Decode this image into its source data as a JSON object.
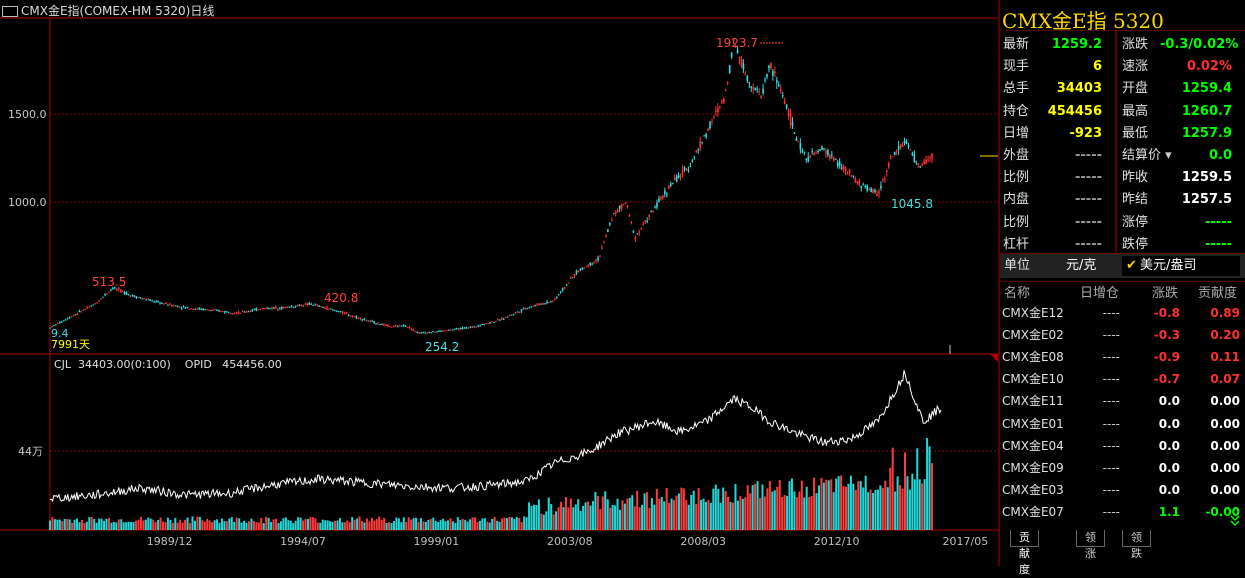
{
  "header": {
    "title": "CMX金E指(COMEX-HM 5320)日线"
  },
  "quote": {
    "instrument_title": "CMX金E指  5320",
    "rows_left": [
      {
        "label": "最新",
        "value": "1259.2",
        "color": "green"
      },
      {
        "label": "现手",
        "value": "6",
        "color": "yellow"
      },
      {
        "label": "总手",
        "value": "34403",
        "color": "yellow"
      },
      {
        "label": "持仓",
        "value": "454456",
        "color": "yellow"
      },
      {
        "label": "日增",
        "value": "-923",
        "color": "yellow"
      },
      {
        "label": "外盘",
        "value": "-----",
        "color": "gray"
      },
      {
        "label": "比例",
        "value": "-----",
        "color": "gray"
      },
      {
        "label": "内盘",
        "value": "-----",
        "color": "gray"
      },
      {
        "label": "比例",
        "value": "-----",
        "color": "gray"
      },
      {
        "label": "杠杆",
        "value": "-----",
        "color": "gray"
      }
    ],
    "rows_right": [
      {
        "label": "涨跌",
        "value": "-0.3/0.02%",
        "color": "green"
      },
      {
        "label": "速涨",
        "value": "0.02%",
        "color": "red"
      },
      {
        "label": "开盘",
        "value": "1259.4",
        "color": "green"
      },
      {
        "label": "最高",
        "value": "1260.7",
        "color": "green"
      },
      {
        "label": "最低",
        "value": "1257.9",
        "color": "green"
      },
      {
        "label": "结算价",
        "value": "0.0",
        "color": "green"
      },
      {
        "label": "昨收",
        "value": "1259.5",
        "color": "white"
      },
      {
        "label": "昨结",
        "value": "1257.5",
        "color": "white"
      },
      {
        "label": "涨停",
        "value": "-----",
        "color": "green"
      },
      {
        "label": "跌停",
        "value": "-----",
        "color": "green"
      }
    ],
    "unit_label": "单位",
    "unit_option_1": "元/克",
    "unit_option_2": "美元/盎司"
  },
  "components": {
    "headers": [
      "名称",
      "日增仓",
      "涨跌",
      "贡献度"
    ],
    "rows": [
      {
        "name": "CMX金E12",
        "oi_change": "----",
        "change": "-0.8",
        "contrib": "0.89",
        "color": "red"
      },
      {
        "name": "CMX金E02",
        "oi_change": "----",
        "change": "-0.3",
        "contrib": "0.20",
        "color": "red"
      },
      {
        "name": "CMX金E08",
        "oi_change": "----",
        "change": "-0.9",
        "contrib": "0.11",
        "color": "red"
      },
      {
        "name": "CMX金E10",
        "oi_change": "----",
        "change": "-0.7",
        "contrib": "0.07",
        "color": "red"
      },
      {
        "name": "CMX金E11",
        "oi_change": "----",
        "change": "0.0",
        "contrib": "0.00",
        "color": "white"
      },
      {
        "name": "CMX金E01",
        "oi_change": "----",
        "change": "0.0",
        "contrib": "0.00",
        "color": "white"
      },
      {
        "name": "CMX金E04",
        "oi_change": "----",
        "change": "0.0",
        "contrib": "0.00",
        "color": "white"
      },
      {
        "name": "CMX金E09",
        "oi_change": "----",
        "change": "0.0",
        "contrib": "0.00",
        "color": "white"
      },
      {
        "name": "CMX金E03",
        "oi_change": "----",
        "change": "0.0",
        "contrib": "0.00",
        "color": "white"
      },
      {
        "name": "CMX金E07",
        "oi_change": "----",
        "change": "1.1",
        "contrib": "-0.00",
        "color": "green"
      }
    ],
    "tabs": [
      "贡献度",
      "领涨",
      "领跌"
    ]
  },
  "chart_data": [
    {
      "type": "candlestick",
      "interval": "日线",
      "y_ticks": [
        "1500.0",
        "1000.0"
      ],
      "x_ticks": [
        "1989/12",
        "1994/07",
        "1999/01",
        "2003/08",
        "2008/03",
        "2012/10",
        "2017/05"
      ],
      "x_tick_pos": [
        0.13,
        0.275,
        0.42,
        0.565,
        0.71,
        0.855,
        0.995
      ],
      "path": [
        [
          0.0,
          286
        ],
        [
          0.02,
          340
        ],
        [
          0.05,
          420
        ],
        [
          0.07,
          513.5
        ],
        [
          0.09,
          470
        ],
        [
          0.12,
          430
        ],
        [
          0.15,
          400
        ],
        [
          0.18,
          385
        ],
        [
          0.21,
          370
        ],
        [
          0.235,
          395
        ],
        [
          0.26,
          400
        ],
        [
          0.29,
          420.8
        ],
        [
          0.32,
          380
        ],
        [
          0.35,
          330
        ],
        [
          0.38,
          290
        ],
        [
          0.395,
          300
        ],
        [
          0.41,
          254.2
        ],
        [
          0.44,
          270
        ],
        [
          0.47,
          290
        ],
        [
          0.5,
          330
        ],
        [
          0.53,
          400
        ],
        [
          0.56,
          440
        ],
        [
          0.585,
          600
        ],
        [
          0.61,
          680
        ],
        [
          0.625,
          920
        ],
        [
          0.64,
          1000
        ],
        [
          0.65,
          800
        ],
        [
          0.67,
          950
        ],
        [
          0.69,
          1100
        ],
        [
          0.71,
          1200
        ],
        [
          0.73,
          1400
        ],
        [
          0.75,
          1600
        ],
        [
          0.76,
          1923.7
        ],
        [
          0.775,
          1700
        ],
        [
          0.79,
          1600
        ],
        [
          0.8,
          1780
        ],
        [
          0.815,
          1600
        ],
        [
          0.83,
          1350
        ],
        [
          0.84,
          1250
        ],
        [
          0.86,
          1300
        ],
        [
          0.88,
          1200
        ],
        [
          0.9,
          1100
        ],
        [
          0.92,
          1045.8
        ],
        [
          0.935,
          1250
        ],
        [
          0.95,
          1350
        ],
        [
          0.965,
          1200
        ],
        [
          0.98,
          1259.2
        ]
      ],
      "annotations": [
        {
          "label": "1923.7",
          "type": "high"
        },
        {
          "label": "513.5",
          "type": "high"
        },
        {
          "label": "420.8",
          "type": "high"
        },
        {
          "label": "254.2",
          "type": "low"
        },
        {
          "label": "1045.8",
          "type": "low"
        },
        {
          "label": "9.4",
          "type": "low"
        }
      ],
      "days_label": "7991天"
    },
    {
      "type": "bar+line",
      "indicator": "CJL  34403.00(0:100)    OPID   454456.00",
      "y_tick": "44万",
      "oi_path": [
        [
          0.0,
          0.18
        ],
        [
          0.05,
          0.2
        ],
        [
          0.1,
          0.24
        ],
        [
          0.15,
          0.2
        ],
        [
          0.2,
          0.21
        ],
        [
          0.25,
          0.26
        ],
        [
          0.3,
          0.29
        ],
        [
          0.35,
          0.27
        ],
        [
          0.4,
          0.25
        ],
        [
          0.45,
          0.24
        ],
        [
          0.5,
          0.26
        ],
        [
          0.53,
          0.28
        ],
        [
          0.56,
          0.38
        ],
        [
          0.6,
          0.45
        ],
        [
          0.63,
          0.55
        ],
        [
          0.67,
          0.62
        ],
        [
          0.7,
          0.56
        ],
        [
          0.73,
          0.62
        ],
        [
          0.76,
          0.75
        ],
        [
          0.78,
          0.7
        ],
        [
          0.8,
          0.62
        ],
        [
          0.83,
          0.55
        ],
        [
          0.86,
          0.5
        ],
        [
          0.89,
          0.52
        ],
        [
          0.92,
          0.62
        ],
        [
          0.95,
          0.9
        ],
        [
          0.97,
          0.62
        ],
        [
          0.99,
          0.7
        ]
      ]
    }
  ]
}
